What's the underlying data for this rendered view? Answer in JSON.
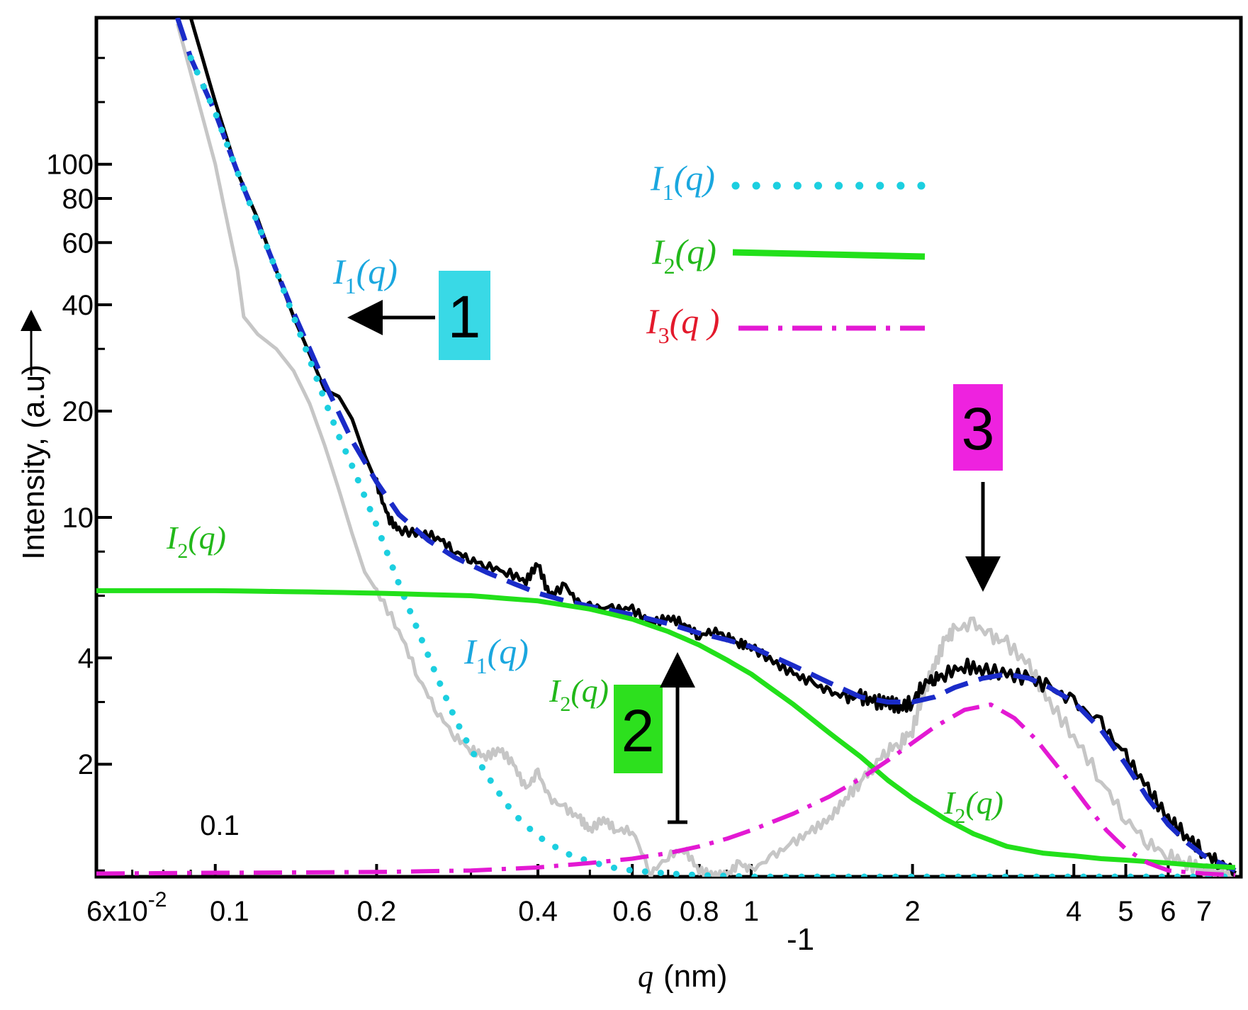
{
  "chart_data": {
    "type": "line",
    "xscale": "log",
    "yscale": "log",
    "xlim": [
      0.06,
      8.2
    ],
    "ylim": [
      0.96,
      260
    ],
    "xlabel": {
      "var": "q",
      "unit": "(nm)",
      "exp": "-1"
    },
    "ylabel": "Intensity, (a.u)",
    "ylabel_arrow": "→",
    "x_ticks": [
      {
        "value": 0.06,
        "label": "6x10",
        "sup": "-2"
      },
      {
        "value": 0.1,
        "label": "0.1"
      },
      {
        "value": 0.2,
        "label": "0.2"
      },
      {
        "value": 0.4,
        "label": "0.4"
      },
      {
        "value": 0.6,
        "label": "0.6"
      },
      {
        "value": 0.8,
        "label": "0.8"
      },
      {
        "value": 1,
        "label": "1"
      },
      {
        "value": 2,
        "label": "2"
      },
      {
        "value": 4,
        "label": "4"
      },
      {
        "value": 5,
        "label": "5"
      },
      {
        "value": 6,
        "label": "6"
      },
      {
        "value": 7,
        "label": "7"
      }
    ],
    "y_ticks": [
      {
        "value": 100,
        "label": "100"
      },
      {
        "value": 80,
        "label": "80"
      },
      {
        "value": 60,
        "label": "60"
      },
      {
        "value": 40,
        "label": "40"
      },
      {
        "value": 20,
        "label": "20"
      },
      {
        "value": 10,
        "label": "10"
      },
      {
        "value": 4,
        "label": "4"
      },
      {
        "value": 2,
        "label": "2"
      }
    ],
    "extra_label": "0.1",
    "series": [
      {
        "name": "experimental (grey)",
        "color": "#c6c6c6",
        "style": "solid",
        "x": [
          0.085,
          0.092,
          0.1,
          0.105,
          0.11,
          0.113,
          0.12,
          0.13,
          0.14,
          0.15,
          0.16,
          0.17,
          0.18,
          0.19,
          0.2,
          0.22,
          0.24,
          0.26,
          0.28,
          0.3,
          0.32,
          0.34,
          0.36,
          0.38,
          0.4,
          0.42,
          0.45,
          0.48,
          0.5,
          0.53,
          0.56,
          0.6,
          0.65,
          0.7,
          0.75,
          0.8,
          0.85,
          0.9,
          0.95,
          1.0,
          1.1,
          1.2,
          1.3,
          1.4,
          1.5,
          1.6,
          1.7,
          1.8,
          1.9,
          2.0,
          2.1,
          2.2,
          2.3,
          2.4,
          2.6,
          2.8,
          3.0,
          3.3,
          3.6,
          4.0,
          4.5,
          5.0,
          5.5,
          6.0,
          6.5,
          7.0,
          7.5,
          8.0
        ],
        "y": [
          250,
          160,
          100,
          70,
          50,
          37,
          33,
          30,
          26,
          21,
          16,
          12,
          9,
          7,
          6.2,
          4.8,
          3.5,
          2.8,
          2.4,
          2.2,
          2.1,
          2.2,
          2.0,
          1.7,
          1.9,
          1.6,
          1.5,
          1.4,
          1.3,
          1.4,
          1.3,
          1.3,
          0.98,
          1.1,
          1.15,
          1.0,
          0.97,
          0.97,
          1.05,
          1.0,
          1.1,
          1.2,
          1.3,
          1.4,
          1.6,
          1.8,
          2.0,
          2.2,
          2.3,
          2.5,
          3.2,
          3.8,
          4.5,
          4.8,
          5.0,
          4.6,
          4.4,
          3.8,
          3.0,
          2.4,
          1.8,
          1.4,
          1.2,
          1.1,
          1.05,
          1.0,
          0.98,
          0.97
        ]
      },
      {
        "name": "experimental (black)",
        "color": "#000000",
        "style": "solid",
        "x": [
          0.09,
          0.1,
          0.11,
          0.12,
          0.13,
          0.14,
          0.15,
          0.16,
          0.17,
          0.18,
          0.19,
          0.2,
          0.21,
          0.22,
          0.24,
          0.26,
          0.28,
          0.3,
          0.32,
          0.35,
          0.38,
          0.4,
          0.42,
          0.45,
          0.48,
          0.5,
          0.55,
          0.6,
          0.65,
          0.7,
          0.75,
          0.8,
          0.85,
          0.9,
          0.95,
          1.0,
          1.1,
          1.2,
          1.3,
          1.4,
          1.5,
          1.6,
          1.7,
          1.8,
          1.9,
          2.0,
          2.1,
          2.2,
          2.3,
          2.5,
          2.7,
          3.0,
          3.3,
          3.6,
          4.0,
          4.5,
          5.0,
          5.5,
          6.0,
          6.5,
          7.0,
          7.5,
          8.0
        ],
        "y": [
          260,
          150,
          95,
          70,
          50,
          37,
          29,
          23,
          22,
          19,
          15,
          12.5,
          10,
          9.2,
          9.0,
          8.8,
          8.0,
          7.6,
          7.3,
          7.0,
          6.6,
          7.4,
          6.0,
          6.4,
          5.6,
          5.6,
          5.5,
          5.5,
          5.0,
          5.2,
          5.0,
          4.6,
          4.8,
          4.6,
          4.4,
          4.3,
          3.9,
          3.6,
          3.4,
          3.2,
          3.1,
          3.1,
          3.0,
          3.0,
          2.9,
          3.0,
          3.4,
          3.5,
          3.6,
          3.8,
          3.7,
          3.6,
          3.5,
          3.3,
          3.0,
          2.6,
          2.1,
          1.7,
          1.4,
          1.25,
          1.12,
          1.05,
          1.0
        ]
      },
      {
        "name": "fit (blue dashed)",
        "color": "#1a2bc8",
        "style": "dashed",
        "x": [
          0.085,
          0.09,
          0.1,
          0.11,
          0.12,
          0.13,
          0.14,
          0.15,
          0.16,
          0.18,
          0.2,
          0.22,
          0.25,
          0.28,
          0.32,
          0.36,
          0.4,
          0.45,
          0.5,
          0.6,
          0.7,
          0.8,
          0.9,
          1.0,
          1.2,
          1.4,
          1.6,
          1.8,
          2.0,
          2.2,
          2.4,
          2.7,
          3.0,
          3.3,
          3.6,
          4.0,
          4.5,
          5.0,
          5.5,
          6.0,
          6.5,
          7.0,
          7.5,
          8.0
        ],
        "y": [
          260,
          200,
          140,
          95,
          68,
          50,
          38,
          30,
          24,
          16.5,
          12.6,
          10.2,
          8.6,
          7.7,
          7.0,
          6.5,
          6.1,
          5.8,
          5.6,
          5.3,
          5.0,
          4.7,
          4.5,
          4.3,
          3.8,
          3.4,
          3.1,
          3.0,
          3.0,
          3.1,
          3.3,
          3.5,
          3.6,
          3.5,
          3.3,
          3.0,
          2.5,
          2.0,
          1.6,
          1.35,
          1.2,
          1.1,
          1.05,
          1.0
        ]
      },
      {
        "name": "I1(q)",
        "color": "#1ccfe0",
        "style": "dotted",
        "x": [
          0.09,
          0.1,
          0.11,
          0.12,
          0.13,
          0.14,
          0.15,
          0.16,
          0.17,
          0.18,
          0.2,
          0.22,
          0.24,
          0.26,
          0.28,
          0.3,
          0.33,
          0.36,
          0.4,
          0.45,
          0.5,
          0.55,
          0.6,
          0.7,
          0.8,
          0.9,
          1.0,
          1.5,
          2,
          3,
          4,
          5,
          6,
          7,
          8
        ],
        "y": [
          200,
          140,
          95,
          68,
          50,
          37,
          28,
          21.5,
          17,
          14,
          9.5,
          6.5,
          4.7,
          3.5,
          2.7,
          2.2,
          1.75,
          1.45,
          1.25,
          1.12,
          1.06,
          1.02,
          1.0,
          0.98,
          0.97,
          0.965,
          0.96,
          0.96,
          0.96,
          0.96,
          0.96,
          0.96,
          0.96,
          0.96,
          0.96
        ]
      },
      {
        "name": "I2(q)",
        "color": "#22e01a",
        "style": "solid",
        "x": [
          0.06,
          0.08,
          0.1,
          0.15,
          0.2,
          0.3,
          0.4,
          0.5,
          0.6,
          0.7,
          0.8,
          0.9,
          1.0,
          1.2,
          1.4,
          1.6,
          1.8,
          2.0,
          2.3,
          2.6,
          3.0,
          3.5,
          4.0,
          4.5,
          5.0,
          6.0,
          7.0,
          8.0
        ],
        "y": [
          6.2,
          6.2,
          6.2,
          6.15,
          6.1,
          6.0,
          5.8,
          5.5,
          5.15,
          4.75,
          4.35,
          3.95,
          3.6,
          2.95,
          2.45,
          2.1,
          1.8,
          1.6,
          1.4,
          1.27,
          1.17,
          1.12,
          1.1,
          1.08,
          1.07,
          1.05,
          1.03,
          1.02
        ]
      },
      {
        "name": "I3(q)",
        "color": "#e319d3",
        "style": "dashdot",
        "x": [
          0.06,
          0.1,
          0.2,
          0.3,
          0.4,
          0.5,
          0.6,
          0.7,
          0.8,
          0.9,
          1.0,
          1.2,
          1.4,
          1.6,
          1.8,
          2.0,
          2.2,
          2.5,
          2.8,
          3.1,
          3.4,
          3.8,
          4.2,
          4.6,
          5.0,
          5.5,
          6.0,
          7.0,
          8.0
        ],
        "y": [
          0.98,
          0.985,
          0.99,
          1.0,
          1.02,
          1.05,
          1.08,
          1.12,
          1.17,
          1.23,
          1.3,
          1.45,
          1.62,
          1.82,
          2.05,
          2.3,
          2.55,
          2.85,
          2.95,
          2.7,
          2.35,
          1.9,
          1.55,
          1.3,
          1.15,
          1.05,
          1.0,
          0.98,
          0.97
        ]
      }
    ],
    "legend": {
      "position": "top-right",
      "entries": [
        {
          "base": "I",
          "sub": "1",
          "arg": "(q)",
          "color": "#1ccfe0",
          "style": "dotted"
        },
        {
          "base": "I",
          "sub": "2",
          "arg": "(q)",
          "color": "#22e01a",
          "style": "solid"
        },
        {
          "base": "I",
          "sub": "3",
          "arg": "(q )",
          "color": "#e319d3",
          "style": "dashdot"
        }
      ]
    },
    "annotations": [
      {
        "id": "box1",
        "text": "1",
        "bg": "#39d9e6"
      },
      {
        "id": "box2",
        "text": "2",
        "bg": "#2de01e"
      },
      {
        "id": "box3",
        "text": "3",
        "bg": "#ee22df"
      },
      {
        "id": "lab-i1-top",
        "base": "I",
        "sub": "1",
        "arg": "(q)",
        "color": "#1aa7df"
      },
      {
        "id": "lab-i1-mid",
        "base": "I",
        "sub": "1",
        "arg": "(q)",
        "color": "#1aa7df"
      },
      {
        "id": "lab-i2-left",
        "base": "I",
        "sub": "2",
        "arg": "(q)",
        "color": "#22b81a"
      },
      {
        "id": "lab-i2-mid",
        "base": "I",
        "sub": "2",
        "arg": "(q)",
        "color": "#22b81a"
      },
      {
        "id": "lab-i2-right",
        "base": "I",
        "sub": "2",
        "arg": "(q)",
        "color": "#22b81a"
      }
    ]
  }
}
